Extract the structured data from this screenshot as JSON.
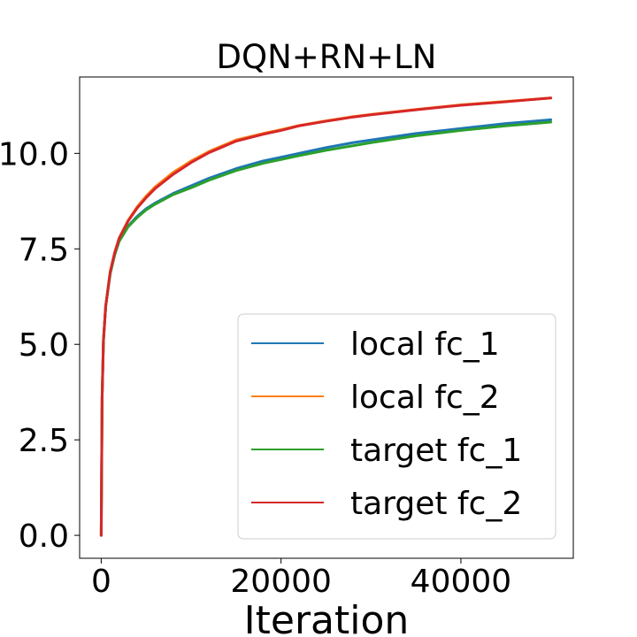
{
  "chart_data": {
    "type": "line",
    "title": "DQN+RN+LN",
    "xlabel": "Iteration",
    "ylabel": "",
    "xlim": [
      -2400,
      52500
    ],
    "ylim": [
      -0.6,
      12.0
    ],
    "xticks": [
      0,
      20000,
      40000
    ],
    "xtick_labels": [
      "0",
      "20000",
      "40000"
    ],
    "yticks": [
      0.0,
      2.5,
      5.0,
      7.5,
      10.0
    ],
    "ytick_labels": [
      "0.0",
      "2.5",
      "5.0",
      "7.5",
      "10.0"
    ],
    "grid": false,
    "legend_position": "lower right",
    "x": [
      0,
      100,
      250,
      500,
      1000,
      1500,
      2000,
      3000,
      4000,
      5000,
      6000,
      8000,
      10000,
      12000,
      15000,
      18000,
      20000,
      22000,
      25000,
      28000,
      30000,
      35000,
      40000,
      45000,
      50000
    ],
    "series": [
      {
        "name": "local fc_1",
        "color": "#1f77b4",
        "values": [
          0.0,
          3.6,
          5.1,
          6.0,
          6.85,
          7.35,
          7.7,
          8.1,
          8.35,
          8.55,
          8.7,
          8.95,
          9.15,
          9.35,
          9.6,
          9.8,
          9.9,
          10.0,
          10.15,
          10.28,
          10.35,
          10.52,
          10.65,
          10.78,
          10.88
        ]
      },
      {
        "name": "local fc_2",
        "color": "#ff7f0e",
        "values": [
          0.0,
          3.6,
          5.1,
          6.0,
          6.9,
          7.4,
          7.78,
          8.25,
          8.6,
          8.88,
          9.12,
          9.5,
          9.8,
          10.05,
          10.35,
          10.52,
          10.62,
          10.73,
          10.85,
          10.96,
          11.02,
          11.15,
          11.27,
          11.36,
          11.45
        ]
      },
      {
        "name": "target fc_1",
        "color": "#2ca02c",
        "values": [
          0.0,
          3.6,
          5.1,
          6.0,
          6.85,
          7.35,
          7.7,
          8.08,
          8.32,
          8.52,
          8.67,
          8.92,
          9.1,
          9.3,
          9.55,
          9.74,
          9.84,
          9.94,
          10.08,
          10.2,
          10.28,
          10.46,
          10.6,
          10.72,
          10.82
        ]
      },
      {
        "name": "target fc_2",
        "color": "#d62728",
        "values": [
          0.0,
          3.6,
          5.1,
          6.0,
          6.9,
          7.4,
          7.78,
          8.23,
          8.57,
          8.84,
          9.08,
          9.45,
          9.76,
          10.02,
          10.32,
          10.5,
          10.6,
          10.72,
          10.84,
          10.95,
          11.01,
          11.14,
          11.26,
          11.35,
          11.45
        ]
      }
    ]
  }
}
